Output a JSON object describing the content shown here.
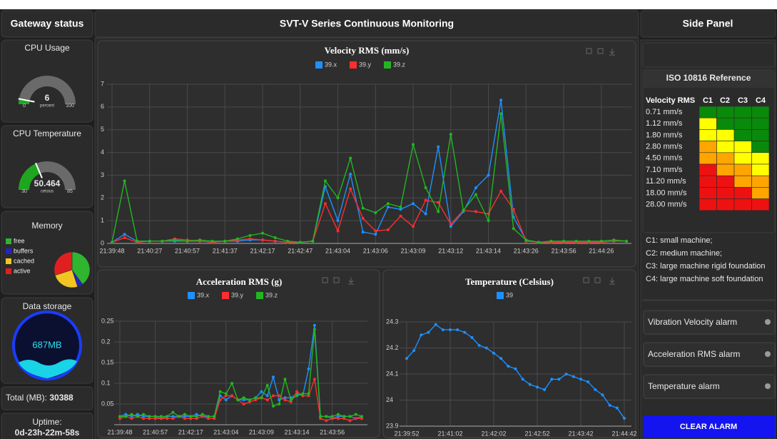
{
  "gateway": {
    "title": "Gateway status",
    "cpu_usage": {
      "title": "CPU Usage",
      "value": 6,
      "min": 0,
      "max": 100,
      "unit": "percent",
      "color": "#1fa51f"
    },
    "cpu_temperature": {
      "title": "CPU Temperature",
      "value": 50.464,
      "min": 30,
      "max": 85,
      "unit": "celsius",
      "color": "#1fa51f"
    },
    "memory": {
      "title": "Memory",
      "categories": [
        "free",
        "buffers",
        "cached",
        "active"
      ],
      "values": [
        40,
        5,
        25,
        30
      ],
      "colors": [
        "#2fb52f",
        "#2323c8",
        "#f2c522",
        "#e02020"
      ]
    },
    "storage": {
      "title": "Data storage",
      "value": "687MB"
    },
    "total": {
      "label": "Total (MB):",
      "value": 30388
    },
    "uptime": {
      "label": "Uptime:",
      "value": "0d-23h-22m-58s"
    }
  },
  "main": {
    "title": "SVT-V Series Continuous Monitoring"
  },
  "chart_data": [
    {
      "type": "line",
      "title": "Velocity RMS (mm/s)",
      "categories": [
        "21:39:48",
        null,
        null,
        "21:40:27",
        null,
        null,
        "21:40:57",
        null,
        null,
        "21:41:37",
        null,
        null,
        "21:42:17",
        null,
        null,
        "21:42:47",
        null,
        null,
        "21:43:04",
        null,
        null,
        "21:43:06",
        null,
        null,
        "21:43:09",
        null,
        null,
        "21:43:12",
        null,
        null,
        "21:43:14",
        null,
        null,
        "21:43:26",
        null,
        null,
        "21:43:56",
        null,
        null,
        "21:44:26",
        null,
        null
      ],
      "series": [
        {
          "name": "39.x",
          "color": "#1e90ff",
          "values": [
            0.05,
            0.4,
            0.1,
            0.1,
            0.1,
            0.1,
            0.1,
            0.1,
            0.05,
            0.1,
            0.1,
            0.15,
            0.15,
            0.1,
            0.05,
            0.05,
            0.1,
            2.5,
            1.0,
            3.05,
            0.5,
            0.4,
            1.6,
            1.5,
            1.75,
            1.3,
            4.25,
            0.75,
            1.4,
            2.45,
            3.0,
            6.3,
            1.15,
            0.15,
            0.05,
            0.05,
            0.05,
            0.05,
            0.05,
            0.05,
            0.1,
            0.1
          ]
        },
        {
          "name": "39.y",
          "color": "#ff2d2d",
          "values": [
            0.05,
            0.25,
            0.05,
            0.1,
            0.1,
            0.2,
            0.15,
            0.1,
            0.05,
            0.1,
            0.15,
            0.2,
            0.15,
            0.1,
            0.05,
            0.05,
            0.1,
            1.75,
            0.55,
            2.4,
            1.1,
            0.55,
            0.6,
            1.2,
            0.75,
            1.9,
            1.8,
            0.85,
            1.45,
            1.4,
            1.3,
            2.3,
            1.5,
            0.1,
            0.05,
            0.05,
            0.05,
            0.05,
            0.05,
            0.05,
            0.1,
            0.1
          ]
        },
        {
          "name": "39.z",
          "color": "#22b622",
          "values": [
            0.05,
            2.75,
            0.1,
            0.1,
            0.1,
            0.15,
            0.1,
            0.15,
            0.1,
            0.1,
            0.2,
            0.35,
            0.45,
            0.25,
            0.1,
            0.05,
            0.1,
            2.75,
            2.0,
            3.75,
            1.55,
            1.35,
            1.75,
            1.6,
            4.35,
            2.45,
            1.4,
            4.8,
            1.45,
            2.15,
            1.0,
            5.7,
            0.65,
            0.15,
            0.05,
            0.1,
            0.1,
            0.1,
            0.1,
            0.1,
            0.15,
            0.1
          ]
        }
      ],
      "ylim": [
        0,
        7
      ],
      "yticks": [
        0,
        1,
        2,
        3,
        4,
        5,
        6,
        7
      ],
      "grid": true
    },
    {
      "type": "line",
      "title": "Acceleration RMS (g)",
      "categories": [
        "21:39:48",
        null,
        null,
        null,
        null,
        null,
        "21:40:57",
        null,
        null,
        null,
        null,
        null,
        "21:42:17",
        null,
        null,
        null,
        null,
        null,
        "21:43:04",
        null,
        null,
        null,
        null,
        null,
        "21:43:09",
        null,
        null,
        null,
        null,
        null,
        "21:43:14",
        null,
        null,
        null,
        null,
        null,
        "21:43:56",
        null,
        null,
        null,
        null,
        null
      ],
      "series": [
        {
          "name": "39.x",
          "color": "#1e90ff",
          "values": [
            0.02,
            0.025,
            0.02,
            0.025,
            0.02,
            0.02,
            0.02,
            0.015,
            0.02,
            0.02,
            0.02,
            0.02,
            0.02,
            0.025,
            0.02,
            0.02,
            0.02,
            0.07,
            0.06,
            0.07,
            0.06,
            0.06,
            0.06,
            0.065,
            0.08,
            0.07,
            0.115,
            0.06,
            0.065,
            0.065,
            0.075,
            0.07,
            0.135,
            0.24,
            0.02,
            0.02,
            0.015,
            0.02,
            0.02,
            0.02,
            0.015,
            0.02
          ]
        },
        {
          "name": "39.y",
          "color": "#ff2d2d",
          "values": [
            0.015,
            0.02,
            0.015,
            0.02,
            0.015,
            0.015,
            0.015,
            0.015,
            0.015,
            0.015,
            0.02,
            0.015,
            0.015,
            0.015,
            0.02,
            0.015,
            0.015,
            0.06,
            0.07,
            0.07,
            0.06,
            0.05,
            0.055,
            0.06,
            0.065,
            0.06,
            0.07,
            0.07,
            0.06,
            0.055,
            0.08,
            0.07,
            0.07,
            0.11,
            0.015,
            0.01,
            0.015,
            0.015,
            0.015,
            0.01,
            0.015,
            0.015
          ]
        },
        {
          "name": "39.z",
          "color": "#22b622",
          "values": [
            0.02,
            0.02,
            0.025,
            0.02,
            0.025,
            0.02,
            0.02,
            0.02,
            0.02,
            0.03,
            0.02,
            0.025,
            0.02,
            0.02,
            0.025,
            0.02,
            0.02,
            0.08,
            0.075,
            0.1,
            0.06,
            0.065,
            0.06,
            0.065,
            0.065,
            0.095,
            0.045,
            0.05,
            0.11,
            0.06,
            0.07,
            0.075,
            0.075,
            0.23,
            0.02,
            0.02,
            0.02,
            0.025,
            0.02,
            0.02,
            0.025,
            0.02
          ]
        }
      ],
      "ylim": [
        0,
        0.25
      ],
      "yticks": [
        0.05,
        0.1,
        0.15,
        0.2,
        0.25
      ],
      "grid": true
    },
    {
      "type": "line",
      "title": "Temperature (Celsius)",
      "categories": [
        "21:39:52",
        null,
        null,
        null,
        null,
        null,
        "21:41:02",
        null,
        null,
        null,
        null,
        null,
        "21:42:02",
        null,
        null,
        null,
        null,
        null,
        "21:42:52",
        null,
        null,
        null,
        null,
        null,
        "21:43:42",
        null,
        null,
        null,
        null,
        null,
        "21:44:42"
      ],
      "series": [
        {
          "name": "39",
          "color": "#1e90ff",
          "values": [
            24.16,
            24.19,
            24.25,
            24.26,
            24.29,
            24.27,
            24.27,
            24.27,
            24.26,
            24.24,
            24.21,
            24.2,
            24.18,
            24.16,
            24.13,
            24.12,
            24.08,
            24.06,
            24.05,
            24.04,
            24.08,
            24.08,
            24.1,
            24.09,
            24.08,
            24.07,
            24.04,
            24.02,
            23.98,
            23.97,
            23.93
          ]
        }
      ],
      "ylim": [
        23.9,
        24.3
      ],
      "yticks": [
        23.9,
        24,
        24.1,
        24.2,
        24.3
      ],
      "grid": true
    }
  ],
  "side": {
    "title": "Side Panel",
    "iso": {
      "title": "ISO 10816 Reference",
      "header": [
        "Velocity RMS",
        "C1",
        "C2",
        "C3",
        "C4"
      ],
      "rows": [
        {
          "label": "0.71 mm/s",
          "zones": [
            "#0a8a0a",
            "#0a8a0a",
            "#0a8a0a",
            "#0a8a0a"
          ]
        },
        {
          "label": "1.12 mm/s",
          "zones": [
            "#ffff00",
            "#0a8a0a",
            "#0a8a0a",
            "#0a8a0a"
          ]
        },
        {
          "label": "1.80 mm/s",
          "zones": [
            "#ffff00",
            "#ffff00",
            "#0a8a0a",
            "#0a8a0a"
          ]
        },
        {
          "label": "2.80 mm/s",
          "zones": [
            "#ffa500",
            "#ffff00",
            "#ffff00",
            "#0a8a0a"
          ]
        },
        {
          "label": "4.50 mm/s",
          "zones": [
            "#ffa500",
            "#ffa500",
            "#ffff00",
            "#ffff00"
          ]
        },
        {
          "label": "7.10 mm/s",
          "zones": [
            "#ee1111",
            "#ffa500",
            "#ffa500",
            "#ffff00"
          ]
        },
        {
          "label": "11.20 mm/s",
          "zones": [
            "#ee1111",
            "#ee1111",
            "#ffa500",
            "#ffa500"
          ]
        },
        {
          "label": "18.00 mm/s",
          "zones": [
            "#ee1111",
            "#ee1111",
            "#ee1111",
            "#ffa500"
          ]
        },
        {
          "label": "28.00 mm/s",
          "zones": [
            "#ee1111",
            "#ee1111",
            "#ee1111",
            "#ee1111"
          ]
        }
      ],
      "notes": [
        "C1: small machine;",
        "C2: medium machine;",
        "C3: large machine rigid foundation",
        "C4: large machine soft foundation"
      ]
    },
    "alarms": [
      "Vibration Velocity alarm",
      "Acceleration RMS alarm",
      "Temperature alarm"
    ],
    "button": "CLEAR ALARM"
  }
}
